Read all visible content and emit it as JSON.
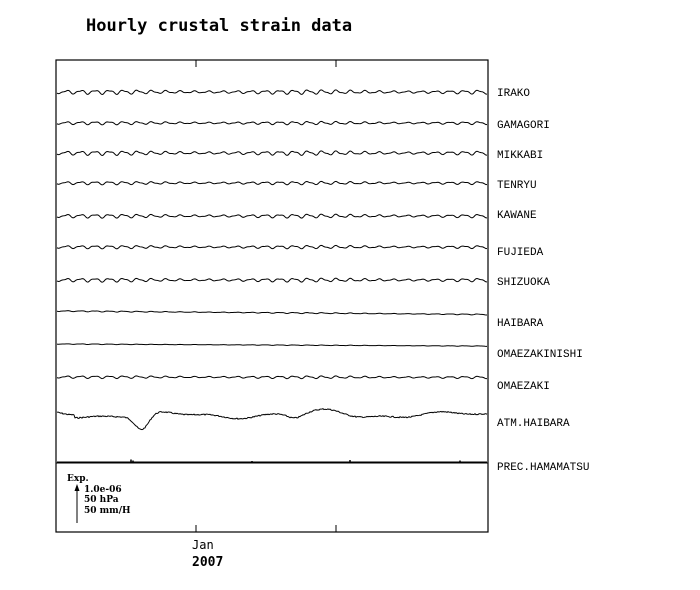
{
  "chart_data": {
    "type": "line",
    "title": "Hourly crustal strain data",
    "x_tick_month": "Jan",
    "x_tick_year": "2007",
    "scale": {
      "label": "Exp.",
      "strain": "1.0e-06",
      "pressure": "50 hPa",
      "precip": "50 mm/H"
    },
    "series": [
      {
        "name": "IRAKO",
        "kind": "tidal",
        "amplitude": 0.4,
        "trend": 0
      },
      {
        "name": "GAMAGORI",
        "kind": "tidal",
        "amplitude": 0.3,
        "trend": 0
      },
      {
        "name": "MIKKABI",
        "kind": "tidal",
        "amplitude": 0.4,
        "trend": 0
      },
      {
        "name": "TENRYU",
        "kind": "tidal",
        "amplitude": 0.3,
        "trend": 0
      },
      {
        "name": "KAWANE",
        "kind": "tidal",
        "amplitude": 0.35,
        "trend": 0
      },
      {
        "name": "FUJIEDA",
        "kind": "tidal",
        "amplitude": 0.3,
        "trend": 0
      },
      {
        "name": "SHIZUOKA",
        "kind": "tidal",
        "amplitude": 0.35,
        "trend": 0
      },
      {
        "name": "HAIBARA",
        "kind": "tidal",
        "amplitude": 0.1,
        "trend": 1.0
      },
      {
        "name": "OMAEZAKINISHI",
        "kind": "tidal",
        "amplitude": 0.03,
        "trend": 0.6
      },
      {
        "name": "OMAEZAKI",
        "kind": "tidal",
        "amplitude": 0.25,
        "trend": 0.1
      },
      {
        "name": "ATM.HAIBARA",
        "kind": "pressure",
        "amplitude": 1.0,
        "trend": 0
      },
      {
        "name": "PREC.HAMAMATSU",
        "kind": "precip",
        "amplitude": 0.0,
        "trend": 0
      }
    ]
  }
}
